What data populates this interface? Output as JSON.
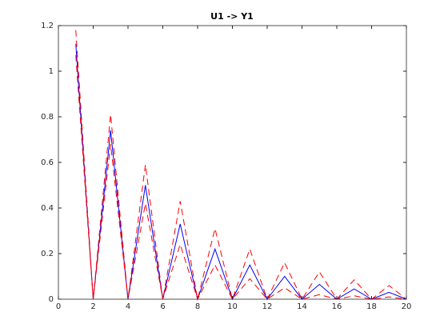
{
  "chart_data": {
    "type": "line",
    "title": "U1 -> Y1",
    "x": [
      1,
      2,
      3,
      4,
      5,
      6,
      7,
      8,
      9,
      10,
      11,
      12,
      13,
      14,
      15,
      16,
      17,
      18,
      19,
      20
    ],
    "series": [
      {
        "color": "#0000ff",
        "style": "solid",
        "values": [
          1.12,
          0,
          0.74,
          0,
          0.5,
          0,
          0.33,
          0,
          0.22,
          0,
          0.15,
          0,
          0.1,
          0,
          0.065,
          0,
          0.045,
          0,
          0.03,
          0
        ]
      },
      {
        "color": "#ff0000",
        "style": "dashed",
        "values": [
          1.18,
          0,
          0.81,
          0,
          0.59,
          0,
          0.43,
          0,
          0.31,
          0,
          0.22,
          0,
          0.16,
          0,
          0.12,
          0,
          0.085,
          0,
          0.06,
          0
        ]
      },
      {
        "color": "#ff0000",
        "style": "dashed",
        "values": [
          1.07,
          0,
          0.68,
          0,
          0.42,
          0,
          0.24,
          0,
          0.15,
          0,
          0.09,
          0,
          0.05,
          0,
          0.02,
          0,
          0.015,
          0,
          0.01,
          0
        ]
      }
    ],
    "xlim": [
      0,
      20
    ],
    "xticks": [
      0,
      2,
      4,
      6,
      8,
      10,
      12,
      14,
      16,
      18,
      20
    ],
    "ylim": [
      0,
      1.2
    ],
    "yticks": [
      0,
      0.2,
      0.4,
      0.6,
      0.8,
      1,
      1.2
    ],
    "grid": false
  }
}
